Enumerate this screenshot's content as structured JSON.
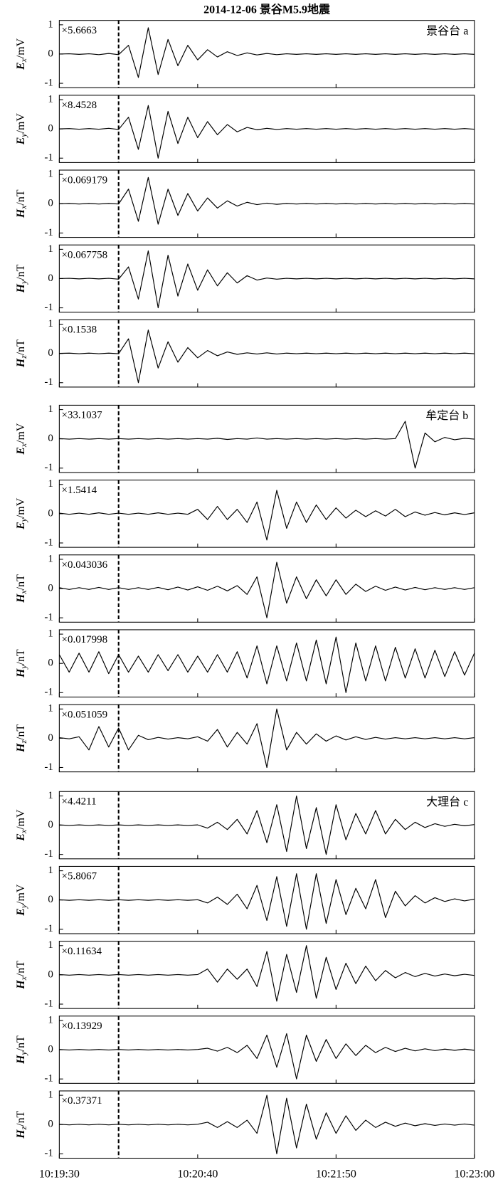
{
  "chart_data": {
    "type": "line",
    "title": "2014-12-06 景谷M5.9地震",
    "x": [
      37170,
      37175,
      37180,
      37185,
      37190,
      37195,
      37200,
      37205,
      37210,
      37215,
      37220,
      37225,
      37230,
      37235,
      37240,
      37245,
      37250,
      37255,
      37260,
      37265,
      37270,
      37275,
      37280,
      37285,
      37290,
      37295,
      37300,
      37305,
      37310,
      37315,
      37320,
      37325,
      37330,
      37335,
      37340,
      37345,
      37350,
      37355,
      37360,
      37365,
      37370,
      37375,
      37380
    ],
    "xlim": [
      37170,
      37380
    ],
    "xticks": [
      {
        "value": 37170,
        "label": "10:19:30"
      },
      {
        "value": 37240,
        "label": "10:20:40"
      },
      {
        "value": 37310,
        "label": "10:21:50"
      },
      {
        "value": 37380,
        "label": "10:23:00"
      }
    ],
    "ylim": [
      -1.15,
      1.15
    ],
    "yticks": [
      -1,
      0,
      1
    ],
    "marker_x": 37200,
    "color": "#000000",
    "panels": [
      {
        "ylabel": {
          "symbol": "E",
          "sub": "x",
          "unit": "/mV"
        },
        "scale": "×5.6663",
        "station": "景谷台 a",
        "values": [
          0,
          0.01,
          -0.01,
          0.01,
          -0.02,
          0.02,
          -0.02,
          0.3,
          -0.8,
          0.9,
          -0.7,
          0.5,
          -0.4,
          0.3,
          -0.2,
          0.15,
          -0.1,
          0.08,
          -0.05,
          0.04,
          -0.03,
          0.02,
          -0.02,
          0.01,
          -0.01,
          0.01,
          -0.01,
          0.01,
          -0.01,
          0.01,
          -0.01,
          0.01,
          -0.01,
          0.01,
          -0.01,
          0.01,
          -0.01,
          0.01,
          -0.01,
          0.01,
          -0.01,
          0.01,
          -0.01
        ]
      },
      {
        "ylabel": {
          "symbol": "E",
          "sub": "y",
          "unit": "/mV"
        },
        "scale": "×8.4528",
        "values": [
          0,
          0.01,
          -0.01,
          0.01,
          -0.01,
          0.02,
          -0.02,
          0.4,
          -0.7,
          0.8,
          -1.0,
          0.6,
          -0.5,
          0.4,
          -0.3,
          0.25,
          -0.2,
          0.15,
          -0.1,
          0.05,
          -0.03,
          0.02,
          -0.02,
          0.01,
          -0.01,
          0.01,
          -0.01,
          0.01,
          -0.01,
          0.01,
          -0.01,
          0.01,
          -0.01,
          0.01,
          -0.01,
          0.01,
          -0.01,
          0.01,
          -0.01,
          0.01,
          -0.01,
          0.01,
          -0.01
        ]
      },
      {
        "ylabel": {
          "symbol": "H",
          "sub": "x",
          "unit": "/nT"
        },
        "scale": "×0.069179",
        "values": [
          0,
          0.01,
          -0.01,
          0.01,
          -0.01,
          0.01,
          -0.01,
          0.5,
          -0.6,
          0.9,
          -0.7,
          0.5,
          -0.4,
          0.35,
          -0.25,
          0.2,
          -0.15,
          0.1,
          -0.08,
          0.05,
          -0.03,
          0.02,
          -0.02,
          0.01,
          -0.01,
          0.01,
          -0.01,
          0.01,
          -0.01,
          0.01,
          -0.01,
          0.01,
          -0.01,
          0.01,
          -0.01,
          0.01,
          -0.01,
          0.01,
          -0.01,
          0.01,
          -0.01,
          0.01,
          -0.01
        ]
      },
      {
        "ylabel": {
          "symbol": "H",
          "sub": "y",
          "unit": "/nT"
        },
        "scale": "×0.067758",
        "values": [
          0,
          0.01,
          -0.01,
          0.01,
          -0.01,
          0.01,
          -0.02,
          0.4,
          -0.7,
          0.95,
          -1.0,
          0.8,
          -0.6,
          0.5,
          -0.4,
          0.3,
          -0.25,
          0.2,
          -0.15,
          0.1,
          -0.05,
          0.02,
          -0.02,
          0.01,
          -0.01,
          0.01,
          -0.01,
          0.01,
          -0.01,
          0.01,
          -0.01,
          0.01,
          -0.01,
          0.01,
          -0.01,
          0.01,
          -0.01,
          0.01,
          -0.01,
          0.01,
          -0.01,
          0.01,
          -0.01
        ]
      },
      {
        "ylabel": {
          "symbol": "H",
          "sub": "z",
          "unit": "/nT"
        },
        "scale": "×0.1538",
        "values": [
          0,
          0.01,
          -0.01,
          0.01,
          -0.01,
          0.01,
          -0.01,
          0.5,
          -1.0,
          0.8,
          -0.5,
          0.4,
          -0.3,
          0.2,
          -0.15,
          0.1,
          -0.08,
          0.05,
          -0.03,
          0.02,
          -0.02,
          0.02,
          -0.02,
          0.01,
          -0.01,
          0.01,
          -0.01,
          0.01,
          -0.01,
          0.01,
          -0.01,
          0.01,
          -0.01,
          0.01,
          -0.01,
          0.01,
          -0.01,
          0.01,
          -0.01,
          0.01,
          -0.01,
          0.01,
          -0.01
        ]
      },
      {
        "ylabel": {
          "symbol": "E",
          "sub": "x",
          "unit": "/mV"
        },
        "scale": "×33.1037",
        "station": "牟定台 b",
        "values": [
          0.01,
          -0.01,
          0.01,
          -0.01,
          0.01,
          -0.01,
          0.01,
          -0.01,
          0.01,
          -0.01,
          0.01,
          -0.01,
          0.01,
          -0.01,
          0.01,
          -0.01,
          0.02,
          -0.02,
          0.01,
          -0.01,
          0.03,
          -0.01,
          0.01,
          -0.01,
          0.01,
          -0.01,
          0.01,
          -0.01,
          0.01,
          -0.01,
          0.01,
          -0.01,
          0.01,
          -0.01,
          0.01,
          0.6,
          -1.0,
          0.2,
          -0.1,
          0.05,
          -0.03,
          0.02,
          -0.01
        ]
      },
      {
        "ylabel": {
          "symbol": "E",
          "sub": "y",
          "unit": "/mV"
        },
        "scale": "×1.5414",
        "values": [
          0.02,
          -0.02,
          0.02,
          -0.02,
          0.03,
          -0.02,
          0.02,
          -0.02,
          0.02,
          -0.02,
          0.03,
          -0.02,
          0.02,
          -0.02,
          0.15,
          -0.2,
          0.25,
          -0.2,
          0.15,
          -0.3,
          0.4,
          -0.9,
          0.8,
          -0.5,
          0.4,
          -0.3,
          0.3,
          -0.2,
          0.2,
          -0.15,
          0.12,
          -0.1,
          0.1,
          -0.08,
          0.15,
          -0.1,
          0.06,
          -0.05,
          0.04,
          -0.04,
          0.03,
          -0.03,
          0.03
        ]
      },
      {
        "ylabel": {
          "symbol": "H",
          "sub": "x",
          "unit": "/nT"
        },
        "scale": "×0.043036",
        "values": [
          0.03,
          -0.03,
          0.03,
          -0.03,
          0.04,
          -0.03,
          0.03,
          -0.03,
          0.03,
          -0.03,
          0.04,
          -0.04,
          0.05,
          -0.05,
          0.06,
          -0.06,
          0.08,
          -0.08,
          0.1,
          -0.2,
          0.4,
          -1.0,
          0.9,
          -0.5,
          0.4,
          -0.35,
          0.3,
          -0.25,
          0.3,
          -0.2,
          0.15,
          -0.1,
          0.08,
          -0.06,
          0.05,
          -0.05,
          0.04,
          -0.04,
          0.03,
          -0.03,
          0.03,
          -0.03,
          0.03
        ]
      },
      {
        "ylabel": {
          "symbol": "H",
          "sub": "y",
          "unit": "/nT"
        },
        "scale": "×0.017998",
        "values": [
          0.3,
          -0.3,
          0.35,
          -0.3,
          0.4,
          -0.35,
          0.3,
          -0.3,
          0.25,
          -0.3,
          0.3,
          -0.25,
          0.3,
          -0.3,
          0.25,
          -0.3,
          0.3,
          -0.3,
          0.4,
          -0.5,
          0.6,
          -0.7,
          0.6,
          -0.6,
          0.7,
          -0.6,
          0.8,
          -0.7,
          0.9,
          -1.0,
          0.7,
          -0.6,
          0.6,
          -0.6,
          0.55,
          -0.5,
          0.5,
          -0.5,
          0.45,
          -0.45,
          0.4,
          -0.4,
          0.35
        ]
      },
      {
        "ylabel": {
          "symbol": "H",
          "sub": "z",
          "unit": "/nT"
        },
        "scale": "×0.051059",
        "values": [
          0.02,
          -0.02,
          0.05,
          -0.4,
          0.4,
          -0.3,
          0.35,
          -0.4,
          0.1,
          -0.05,
          0.03,
          -0.03,
          0.02,
          -0.02,
          0.05,
          -0.1,
          0.3,
          -0.3,
          0.2,
          -0.2,
          0.5,
          -1.0,
          1.0,
          -0.4,
          0.2,
          -0.2,
          0.15,
          -0.1,
          0.08,
          -0.06,
          0.05,
          -0.04,
          0.03,
          -0.03,
          0.02,
          -0.02,
          0.02,
          -0.02,
          0.02,
          -0.02,
          0.02,
          -0.02,
          0.02
        ]
      },
      {
        "ylabel": {
          "symbol": "E",
          "sub": "x",
          "unit": "/mV"
        },
        "scale": "×4.4211",
        "station": "大理台 c",
        "values": [
          0.01,
          -0.01,
          0.01,
          -0.01,
          0.01,
          -0.01,
          0.01,
          -0.01,
          0.01,
          -0.01,
          0.01,
          -0.01,
          0.01,
          -0.01,
          0.01,
          -0.1,
          0.1,
          -0.15,
          0.2,
          -0.3,
          0.5,
          -0.6,
          0.7,
          -0.9,
          1.0,
          -0.8,
          0.6,
          -1.0,
          0.7,
          -0.5,
          0.4,
          -0.3,
          0.5,
          -0.3,
          0.2,
          -0.15,
          0.1,
          -0.08,
          0.05,
          -0.04,
          0.03,
          -0.02,
          0.02
        ]
      },
      {
        "ylabel": {
          "symbol": "E",
          "sub": "y",
          "unit": "/mV"
        },
        "scale": "×5.8067",
        "values": [
          0.01,
          -0.01,
          0.01,
          -0.01,
          0.01,
          -0.01,
          0.01,
          -0.01,
          0.01,
          -0.01,
          0.01,
          -0.01,
          0.01,
          -0.01,
          0.01,
          -0.1,
          0.1,
          -0.15,
          0.2,
          -0.3,
          0.5,
          -0.7,
          0.8,
          -0.9,
          0.9,
          -1.0,
          0.9,
          -0.8,
          0.7,
          -0.5,
          0.4,
          -0.3,
          0.7,
          -0.6,
          0.3,
          -0.2,
          0.15,
          -0.1,
          0.08,
          -0.05,
          0.04,
          -0.03,
          0.03
        ]
      },
      {
        "ylabel": {
          "symbol": "H",
          "sub": "x",
          "unit": "/nT"
        },
        "scale": "×0.11634",
        "values": [
          0.01,
          -0.01,
          0.01,
          -0.01,
          0.01,
          -0.01,
          0.01,
          -0.01,
          0.01,
          -0.01,
          0.01,
          -0.01,
          0.01,
          -0.01,
          0.01,
          0.2,
          -0.25,
          0.2,
          -0.15,
          0.2,
          -0.4,
          0.8,
          -0.9,
          0.7,
          -0.6,
          1.0,
          -0.8,
          0.6,
          -0.5,
          0.4,
          -0.3,
          0.3,
          -0.2,
          0.15,
          -0.1,
          0.08,
          -0.06,
          0.05,
          -0.04,
          0.03,
          -0.03,
          0.02,
          -0.02
        ]
      },
      {
        "ylabel": {
          "symbol": "H",
          "sub": "y",
          "unit": "/nT"
        },
        "scale": "×0.13929",
        "values": [
          0.01,
          -0.01,
          0.01,
          -0.01,
          0.01,
          -0.01,
          0.01,
          -0.01,
          0.01,
          -0.01,
          0.01,
          -0.01,
          0.01,
          -0.01,
          0.01,
          0.05,
          -0.05,
          0.08,
          -0.1,
          0.15,
          -0.3,
          0.5,
          -0.6,
          0.55,
          -1.0,
          0.5,
          -0.4,
          0.35,
          -0.3,
          0.2,
          -0.2,
          0.15,
          -0.1,
          0.08,
          -0.06,
          0.05,
          -0.04,
          0.03,
          -0.03,
          0.02,
          -0.02,
          0.02,
          -0.02
        ]
      },
      {
        "ylabel": {
          "symbol": "H",
          "sub": "z",
          "unit": "/nT"
        },
        "scale": "×0.37371",
        "values": [
          0.01,
          -0.01,
          0.01,
          -0.01,
          0.01,
          -0.01,
          0.01,
          -0.01,
          0.01,
          -0.01,
          0.01,
          -0.01,
          0.01,
          -0.01,
          0.01,
          0.08,
          -0.1,
          0.1,
          -0.1,
          0.15,
          -0.3,
          1.0,
          -1.0,
          0.9,
          -0.8,
          0.7,
          -0.5,
          0.4,
          -0.3,
          0.3,
          -0.2,
          0.15,
          -0.1,
          0.08,
          -0.06,
          0.05,
          -0.04,
          0.03,
          -0.03,
          0.02,
          -0.02,
          0.02,
          -0.02
        ]
      }
    ]
  }
}
